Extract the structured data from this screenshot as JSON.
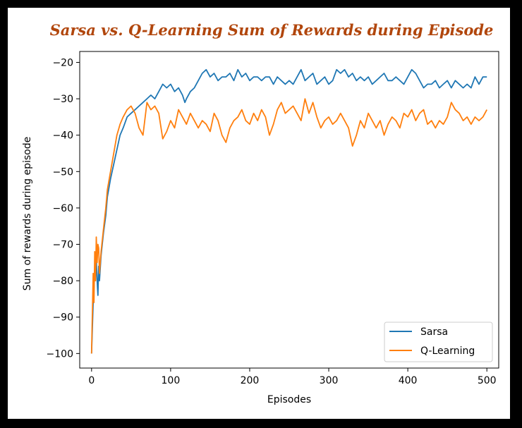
{
  "title": "Sarsa vs. Q-Learning Sum of Rewards during Episode",
  "chart_data": {
    "type": "line",
    "xlabel": "Episodes",
    "ylabel": "Sum of rewards during episode",
    "xlim": [
      -15,
      515
    ],
    "ylim": [
      -104,
      -17
    ],
    "xticks": [
      0,
      100,
      200,
      300,
      400,
      500
    ],
    "yticks": [
      -100,
      -90,
      -80,
      -70,
      -60,
      -50,
      -40,
      -30,
      -20
    ],
    "x_tick_labels": [
      "0",
      "100",
      "200",
      "300",
      "400",
      "500"
    ],
    "y_tick_labels": [
      "−100",
      "−90",
      "−80",
      "−70",
      "−60",
      "−50",
      "−40",
      "−30",
      "−20"
    ],
    "grid": false,
    "legend_position": "bottom-right",
    "series": [
      {
        "name": "Sarsa",
        "color": "#1f77b4",
        "x": [
          0,
          2,
          4,
          6,
          7,
          8,
          9,
          10,
          12,
          15,
          18,
          20,
          24,
          28,
          32,
          36,
          40,
          45,
          50,
          55,
          60,
          65,
          70,
          75,
          80,
          85,
          90,
          95,
          100,
          105,
          110,
          115,
          118,
          120,
          125,
          130,
          135,
          140,
          145,
          150,
          155,
          160,
          165,
          170,
          175,
          180,
          185,
          190,
          195,
          200,
          205,
          210,
          215,
          220,
          225,
          230,
          235,
          240,
          245,
          250,
          255,
          260,
          265,
          270,
          275,
          280,
          285,
          290,
          295,
          300,
          305,
          310,
          315,
          320,
          325,
          330,
          335,
          340,
          345,
          350,
          355,
          360,
          365,
          370,
          375,
          380,
          385,
          390,
          395,
          400,
          405,
          410,
          415,
          420,
          425,
          430,
          435,
          440,
          445,
          450,
          455,
          460,
          465,
          470,
          475,
          480,
          485,
          490,
          495,
          500
        ],
        "y": [
          -100,
          -86,
          -78,
          -74,
          -80,
          -84,
          -76,
          -80,
          -73,
          -67,
          -62,
          -57,
          -52,
          -48,
          -44,
          -40,
          -38,
          -35,
          -34,
          -33,
          -32,
          -31,
          -30,
          -29,
          -30,
          -28,
          -26,
          -27,
          -26,
          -28,
          -27,
          -29,
          -31,
          -30,
          -28,
          -27,
          -25,
          -23,
          -22,
          -24,
          -23,
          -25,
          -24,
          -24,
          -23,
          -25,
          -22,
          -24,
          -23,
          -25,
          -24,
          -24,
          -25,
          -24,
          -24,
          -26,
          -24,
          -25,
          -26,
          -25,
          -26,
          -24,
          -22,
          -25,
          -24,
          -23,
          -26,
          -25,
          -24,
          -26,
          -25,
          -22,
          -23,
          -22,
          -24,
          -23,
          -25,
          -24,
          -25,
          -24,
          -26,
          -25,
          -24,
          -23,
          -25,
          -25,
          -24,
          -25,
          -26,
          -24,
          -22,
          -23,
          -25,
          -27,
          -26,
          -26,
          -25,
          -27,
          -26,
          -25,
          -27,
          -25,
          -26,
          -27,
          -26,
          -27,
          -24,
          -26,
          -24,
          -24
        ]
      },
      {
        "name": "Q-Learning",
        "color": "#ff7f0e",
        "x": [
          0,
          2,
          3,
          4,
          5,
          6,
          7,
          8,
          9,
          10,
          12,
          15,
          18,
          20,
          24,
          28,
          32,
          36,
          40,
          45,
          50,
          55,
          60,
          65,
          70,
          75,
          80,
          85,
          90,
          95,
          100,
          105,
          110,
          115,
          120,
          125,
          130,
          135,
          140,
          145,
          150,
          155,
          160,
          165,
          170,
          175,
          180,
          185,
          190,
          195,
          200,
          205,
          210,
          215,
          220,
          225,
          230,
          235,
          240,
          245,
          250,
          255,
          260,
          265,
          270,
          275,
          280,
          285,
          290,
          295,
          300,
          305,
          310,
          315,
          320,
          325,
          330,
          335,
          340,
          345,
          350,
          355,
          360,
          365,
          370,
          375,
          380,
          385,
          390,
          395,
          400,
          405,
          410,
          415,
          420,
          425,
          430,
          435,
          440,
          445,
          450,
          455,
          460,
          465,
          470,
          475,
          480,
          485,
          490,
          495,
          500
        ],
        "y": [
          -100,
          -78,
          -86,
          -72,
          -80,
          -68,
          -75,
          -70,
          -71,
          -78,
          -72,
          -66,
          -60,
          -55,
          -50,
          -45,
          -40,
          -37,
          -35,
          -33,
          -32,
          -34,
          -38,
          -40,
          -31,
          -33,
          -32,
          -34,
          -41,
          -39,
          -36,
          -38,
          -33,
          -35,
          -37,
          -34,
          -36,
          -38,
          -36,
          -37,
          -39,
          -34,
          -36,
          -40,
          -42,
          -38,
          -36,
          -35,
          -33,
          -36,
          -37,
          -34,
          -36,
          -33,
          -35,
          -40,
          -37,
          -33,
          -31,
          -34,
          -33,
          -32,
          -34,
          -36,
          -30,
          -34,
          -31,
          -35,
          -38,
          -36,
          -35,
          -37,
          -36,
          -34,
          -36,
          -38,
          -43,
          -40,
          -36,
          -38,
          -34,
          -36,
          -38,
          -36,
          -40,
          -37,
          -35,
          -36,
          -38,
          -34,
          -35,
          -33,
          -36,
          -34,
          -33,
          -37,
          -36,
          -38,
          -36,
          -37,
          -35,
          -31,
          -33,
          -34,
          -36,
          -35,
          -37,
          -35,
          -36,
          -35,
          -33
        ]
      }
    ]
  }
}
